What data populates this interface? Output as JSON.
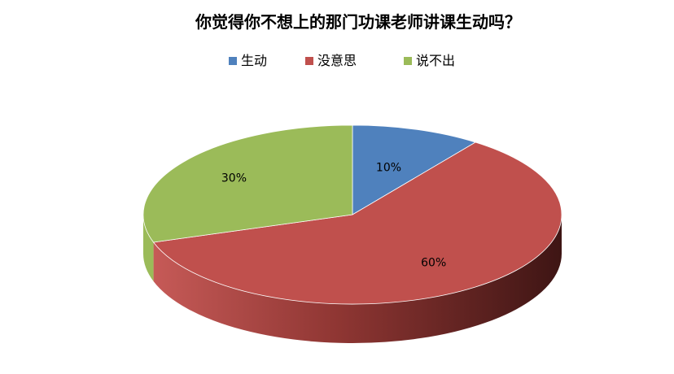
{
  "chart_data": {
    "type": "pie",
    "title": "你觉得你不想上的那门功课老师讲课生动吗？",
    "legend_position": "top",
    "three_d": true,
    "categories": [
      "生动",
      "没意思",
      "说不出"
    ],
    "values": [
      10,
      60,
      30
    ],
    "labels": [
      "10%",
      "60%",
      "30%"
    ],
    "colors": [
      "#4F81BD",
      "#C0504D",
      "#9BBB59"
    ]
  }
}
